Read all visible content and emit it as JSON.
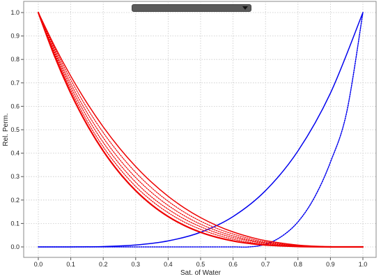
{
  "chart_data": {
    "type": "line",
    "title": "",
    "xlabel": "Sat. of Water",
    "ylabel": "Rel. Perm.",
    "xlim": [
      -0.05,
      1.02
    ],
    "ylim": [
      -0.05,
      1.02
    ],
    "xticks": [
      "0.0",
      "0.1",
      "0.2",
      "0.3",
      "0.4",
      "0.5",
      "0.6",
      "0.7",
      "0.8",
      "0.9",
      "1.0"
    ],
    "yticks": [
      "0.0",
      "0.1",
      "0.2",
      "0.3",
      "0.4",
      "0.5",
      "0.6",
      "0.7",
      "0.8",
      "0.9",
      "1.0"
    ],
    "grid": true,
    "legend": "none",
    "series": [
      {
        "color": "#0000ee",
        "style": "solid",
        "width": 1.5,
        "x": [
          0.0,
          0.1,
          0.2,
          0.3,
          0.4,
          0.5,
          0.6,
          0.7,
          0.8,
          0.9,
          1.0
        ],
        "y": [
          0.0,
          0.0001,
          0.0016,
          0.0081,
          0.0256,
          0.0625,
          0.1296,
          0.2401,
          0.4096,
          0.6561,
          1.0
        ]
      },
      {
        "color": "#0000ee",
        "style": "dotted",
        "width": 1.5,
        "x": [
          0.0,
          0.1,
          0.2,
          0.3,
          0.4,
          0.5,
          0.6,
          0.65,
          0.7,
          0.75,
          0.8,
          0.85,
          0.9,
          0.95,
          1.0
        ],
        "y": [
          0.0,
          0.0,
          0.0,
          0.0,
          0.0,
          0.0,
          0.0,
          0.0,
          0.0113,
          0.0452,
          0.107,
          0.2093,
          0.3618,
          0.5743,
          1.0
        ]
      },
      {
        "color": "#ee0000",
        "style": "solid",
        "width": 2.2,
        "x": [
          0.0,
          0.05,
          0.1,
          0.15,
          0.2,
          0.25,
          0.3,
          0.35,
          0.4,
          0.45,
          0.5,
          0.55,
          0.6,
          0.65,
          0.7,
          0.8,
          0.9,
          1.0
        ],
        "y": [
          1.0,
          0.8145,
          0.6561,
          0.522,
          0.4096,
          0.3164,
          0.2401,
          0.1785,
          0.1296,
          0.0915,
          0.0625,
          0.041,
          0.0256,
          0.015,
          0.0081,
          0.0016,
          0.0001,
          0.0
        ]
      },
      {
        "color": "#ee0000",
        "style": "solid",
        "width": 1.5,
        "x": [
          0.0,
          0.05,
          0.1,
          0.15,
          0.2,
          0.25,
          0.3,
          0.35,
          0.4,
          0.45,
          0.5,
          0.55,
          0.6,
          0.65,
          0.7,
          0.8,
          0.9,
          1.0
        ],
        "y": [
          1.0,
          0.8574,
          0.729,
          0.6141,
          0.512,
          0.4219,
          0.343,
          0.2746,
          0.216,
          0.1664,
          0.125,
          0.0911,
          0.064,
          0.0429,
          0.027,
          0.008,
          0.001,
          0.0
        ]
      },
      {
        "color": "#ee0000",
        "style": "dotted",
        "width": 1.2,
        "x": [
          0.0,
          0.05,
          0.1,
          0.15,
          0.2,
          0.25,
          0.3,
          0.35,
          0.4,
          0.45,
          0.5,
          0.55,
          0.6,
          0.65,
          0.7,
          0.8,
          0.9,
          1.0
        ],
        "y": [
          1.0,
          0.849,
          0.713,
          0.593,
          0.488,
          0.397,
          0.318,
          0.251,
          0.195,
          0.148,
          0.11,
          0.079,
          0.055,
          0.036,
          0.022,
          0.006,
          0.0007,
          0.0
        ]
      },
      {
        "color": "#ee0000",
        "style": "dotted",
        "width": 1.2,
        "x": [
          0.0,
          0.05,
          0.1,
          0.15,
          0.2,
          0.25,
          0.3,
          0.35,
          0.4,
          0.45,
          0.5,
          0.55,
          0.6,
          0.65,
          0.7,
          0.8,
          0.9,
          1.0
        ],
        "y": [
          1.0,
          0.84,
          0.697,
          0.573,
          0.466,
          0.374,
          0.296,
          0.231,
          0.177,
          0.133,
          0.097,
          0.069,
          0.047,
          0.03,
          0.018,
          0.005,
          0.0005,
          0.0
        ]
      },
      {
        "color": "#ee0000",
        "style": "dotted",
        "width": 1.2,
        "x": [
          0.0,
          0.05,
          0.1,
          0.15,
          0.2,
          0.25,
          0.3,
          0.35,
          0.4,
          0.45,
          0.5,
          0.55,
          0.6,
          0.65,
          0.7,
          0.8,
          0.9,
          1.0
        ],
        "y": [
          1.0,
          0.832,
          0.683,
          0.555,
          0.446,
          0.354,
          0.276,
          0.212,
          0.161,
          0.119,
          0.086,
          0.06,
          0.04,
          0.026,
          0.015,
          0.004,
          0.0004,
          0.0
        ]
      },
      {
        "color": "#ee0000",
        "style": "dotted",
        "width": 1.2,
        "x": [
          0.0,
          0.05,
          0.1,
          0.15,
          0.2,
          0.25,
          0.3,
          0.35,
          0.4,
          0.45,
          0.5,
          0.55,
          0.6,
          0.65,
          0.7,
          0.8,
          0.9,
          1.0
        ],
        "y": [
          1.0,
          0.824,
          0.67,
          0.538,
          0.427,
          0.335,
          0.258,
          0.196,
          0.146,
          0.106,
          0.075,
          0.051,
          0.033,
          0.02,
          0.011,
          0.003,
          0.0002,
          0.0
        ]
      }
    ]
  }
}
